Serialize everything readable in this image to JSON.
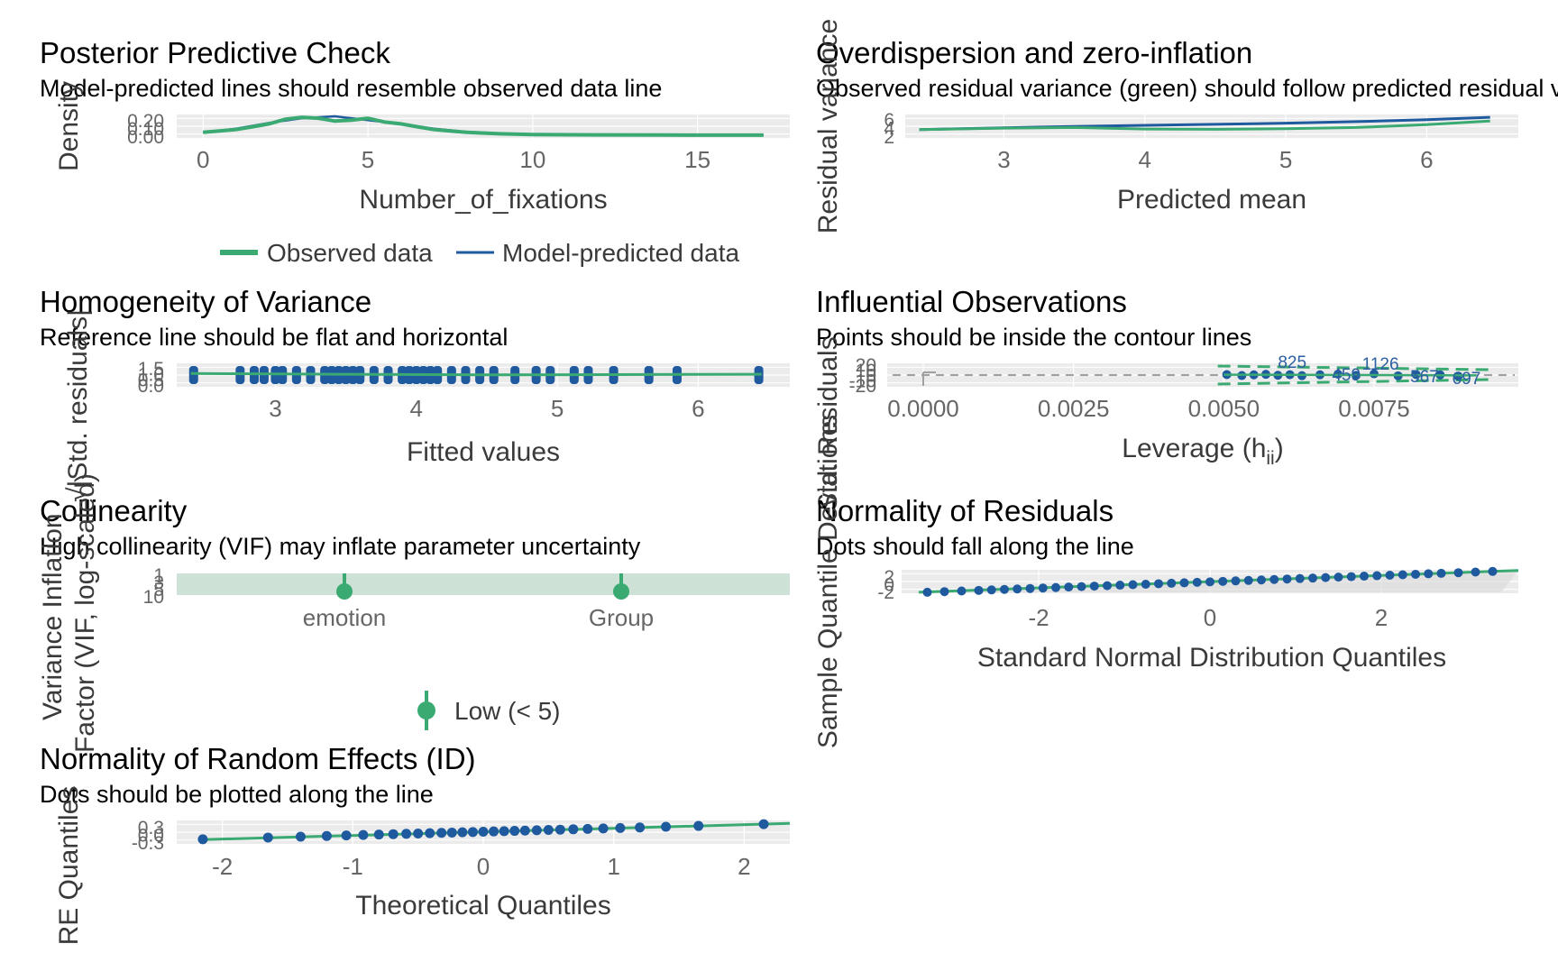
{
  "colors": {
    "green": "#3aaa72",
    "blue": "#1f5a9e",
    "grey": "#a0a0a0",
    "panel": "#ebebeb",
    "vif_band": "#c9dfd2"
  },
  "chart_data": [
    {
      "id": "ppc",
      "type": "line",
      "title": "Posterior Predictive Check",
      "subtitle": "Model-predicted lines should resemble observed data line",
      "xlabel": "Number_of_fixations",
      "ylabel": "Density",
      "xlim": [
        -0.8,
        17.8
      ],
      "ylim": [
        0,
        0.2
      ],
      "xticks": [
        0,
        5,
        10,
        15
      ],
      "ytick_labels": [
        "0.00",
        "0.10",
        "0.20"
      ],
      "series": [
        {
          "name": "Observed data",
          "x": [
            0,
            1,
            1.5,
            2,
            2.5,
            3,
            3.5,
            4,
            4.5,
            5,
            5.5,
            6,
            6.5,
            7,
            8,
            9,
            10,
            12,
            14,
            17
          ],
          "y": [
            0.03,
            0.06,
            0.09,
            0.12,
            0.17,
            0.19,
            0.18,
            0.15,
            0.16,
            0.18,
            0.14,
            0.12,
            0.09,
            0.06,
            0.03,
            0.015,
            0.008,
            0.004,
            0.002,
            0.001
          ]
        },
        {
          "name": "Model-predicted data",
          "x": [
            0,
            1,
            2,
            3,
            4,
            4.5,
            5,
            6,
            7,
            8,
            9,
            10,
            12,
            14,
            17
          ],
          "y": [
            0.03,
            0.07,
            0.13,
            0.18,
            0.2,
            0.18,
            0.16,
            0.12,
            0.07,
            0.035,
            0.02,
            0.01,
            0.004,
            0.002,
            0.001
          ]
        }
      ]
    },
    {
      "id": "overdisp",
      "type": "line",
      "title": "Overdispersion and zero-inflation",
      "subtitle": "Observed residual variance (green) should follow predicted residual variance (blue).",
      "xlabel": "Predicted mean",
      "ylabel": "Residual variance",
      "xlim": [
        2.3,
        6.65
      ],
      "ylim": [
        0,
        7
      ],
      "xticks": [
        3,
        4,
        5,
        6
      ],
      "ytick_labels": [
        "2",
        "4",
        "6"
      ],
      "series": [
        {
          "name": "Observed residual variance",
          "x": [
            2.4,
            3,
            3.5,
            4,
            4.5,
            5,
            5.5,
            6,
            6.45
          ],
          "y": [
            2.4,
            2.9,
            3.1,
            2.6,
            2.5,
            2.7,
            3.1,
            4.0,
            5.2
          ]
        },
        {
          "name": "Predicted residual variance",
          "x": [
            2.4,
            3,
            3.5,
            4,
            4.5,
            5,
            5.5,
            6,
            6.45
          ],
          "y": [
            2.4,
            3.0,
            3.4,
            3.8,
            4.1,
            4.5,
            5.0,
            5.6,
            6.4
          ]
        }
      ]
    },
    {
      "id": "homog",
      "type": "scatter",
      "title": "Homogeneity of Variance",
      "subtitle": "Reference line should be flat and horizontal",
      "xlabel": "Fitted values",
      "ylabel": "√|Std. residuals|",
      "xlim": [
        2.3,
        6.65
      ],
      "ylim": [
        0,
        1.6
      ],
      "xticks": [
        3,
        4,
        5,
        6
      ],
      "ytick_labels": [
        "0.0",
        "0.5",
        "1.0",
        "1.5"
      ],
      "points_x": [
        2.42,
        2.75,
        2.85,
        2.92,
        3.0,
        3.05,
        3.15,
        3.25,
        3.35,
        3.4,
        3.45,
        3.5,
        3.55,
        3.6,
        3.7,
        3.8,
        3.9,
        3.95,
        4.0,
        4.05,
        4.1,
        4.15,
        4.25,
        4.35,
        4.45,
        4.55,
        4.7,
        4.85,
        4.95,
        5.12,
        5.22,
        5.4,
        5.65,
        5.85,
        6.43
      ],
      "reference_line": {
        "x": [
          2.4,
          4.5,
          6.45
        ],
        "y": [
          0.95,
          0.85,
          0.9
        ]
      }
    },
    {
      "id": "influ",
      "type": "scatter",
      "title": "Influential Observations",
      "subtitle": "Points should be inside the contour lines",
      "xlabel": "Leverage (h",
      "xlabel_sub": "ii",
      "xlabel_end": ")",
      "ylabel": "Std. Residuals",
      "xlim": [
        -0.0006,
        0.0099
      ],
      "ylim": [
        -22,
        22
      ],
      "xticks": [
        "0.0000",
        "0.0025",
        "0.0050",
        "0.0075"
      ],
      "xtick_values": [
        0,
        0.0025,
        0.005,
        0.0075
      ],
      "ytick_labels": [
        "-20",
        "-10",
        "0",
        "10",
        "20"
      ],
      "annotations": [
        "825",
        "459",
        "1126",
        "567",
        "697"
      ],
      "point_leverage": [
        0.00505,
        0.0053,
        0.0055,
        0.0057,
        0.0059,
        0.0061,
        0.0063,
        0.0066,
        0.0069,
        0.0072,
        0.0075,
        0.0079,
        0.0082,
        0.0086,
        0.0089
      ],
      "point_residual": [
        1,
        -1,
        0.5,
        1.5,
        -0.5,
        0.8,
        -1.2,
        0.6,
        1.8,
        -0.8,
        2.5,
        -1.5,
        1,
        0.5,
        -2
      ]
    },
    {
      "id": "vif",
      "type": "scatter",
      "title": "Collinearity",
      "subtitle": "High collinearity (VIF) may inflate parameter uncertainty",
      "xlabel": "",
      "ylabel": "Variance Inflation\nFactor (VIF, log-scaled)",
      "categories": [
        "emotion",
        "Group"
      ],
      "values": [
        1.0,
        1.0
      ],
      "ytick_labels": [
        "10",
        "5",
        "3",
        "1"
      ],
      "legend": "Low (< 5)"
    },
    {
      "id": "qq",
      "type": "scatter",
      "title": "Normality of Residuals",
      "subtitle": "Dots should fall along the line",
      "xlabel": "Standard Normal Distribution Quantiles",
      "ylabel": "Sample Quantile Deviations",
      "xlim": [
        -3.6,
        3.6
      ],
      "ylim": [
        -3.6,
        3.6
      ],
      "xticks": [
        -2,
        0,
        2
      ],
      "ytick_labels": [
        "-2",
        "0",
        "2"
      ],
      "points_x": [
        -3.3,
        -3.1,
        -2.9,
        -2.7,
        -2.55,
        -2.4,
        -2.25,
        -2.1,
        -1.95,
        -1.8,
        -1.65,
        -1.5,
        -1.35,
        -1.2,
        -1.05,
        -0.9,
        -0.75,
        -0.6,
        -0.45,
        -0.3,
        -0.15,
        0,
        0.15,
        0.3,
        0.45,
        0.6,
        0.75,
        0.9,
        1.05,
        1.2,
        1.35,
        1.5,
        1.65,
        1.8,
        1.95,
        2.1,
        2.25,
        2.4,
        2.55,
        2.7,
        2.9,
        3.1,
        3.3
      ]
    },
    {
      "id": "re",
      "type": "scatter",
      "title": "Normality of Random Effects (ID)",
      "subtitle": "Dots should be plotted along the line",
      "xlabel": "Theoretical Quantiles",
      "ylabel": "RE Quantiles",
      "xlim": [
        -2.35,
        2.35
      ],
      "ylim": [
        -0.25,
        0.25
      ],
      "xticks": [
        -2,
        -1,
        0,
        1,
        2
      ],
      "ytick_labels": [
        "-0.3",
        "0.0",
        "0.3"
      ],
      "points_x": [
        -2.15,
        -1.65,
        -1.4,
        -1.2,
        -1.05,
        -0.92,
        -0.8,
        -0.69,
        -0.59,
        -0.5,
        -0.41,
        -0.32,
        -0.24,
        -0.16,
        -0.08,
        0,
        0.08,
        0.16,
        0.24,
        0.32,
        0.41,
        0.5,
        0.59,
        0.69,
        0.8,
        0.92,
        1.05,
        1.2,
        1.4,
        1.65,
        2.15
      ]
    }
  ]
}
